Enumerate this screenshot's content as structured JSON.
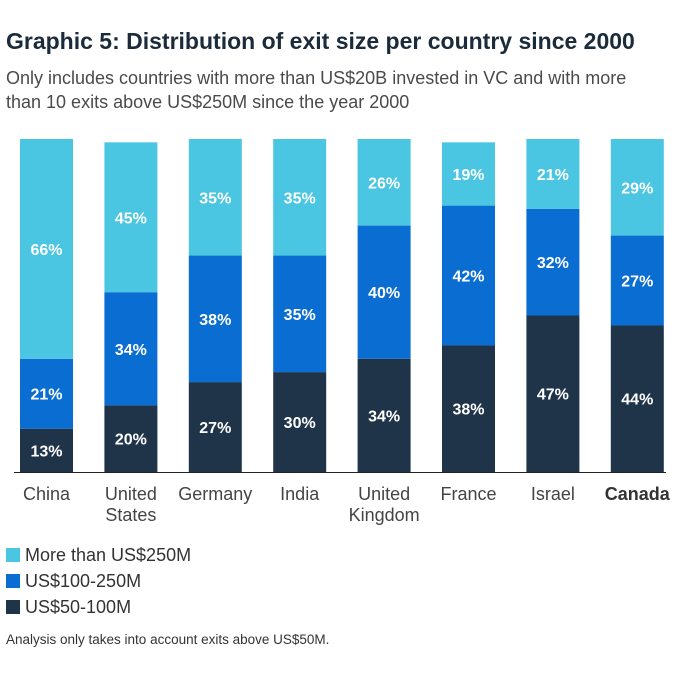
{
  "title": "Graphic 5: Distribution of exit size per country since 2000",
  "subtitle": "Only includes countries with more than US$20B invested in VC and with more than 10 exits above US$250M since the year 2000",
  "footnote": "Analysis only takes into account exits above US$50M.",
  "chart_data": {
    "type": "bar",
    "stacked": true,
    "normalized": true,
    "title": "Graphic 5: Distribution of exit size per country since 2000",
    "xlabel": "",
    "ylabel": "",
    "ylim": [
      0,
      100
    ],
    "grid": false,
    "legend_position": "bottom-left",
    "categories": [
      {
        "lines": [
          "China"
        ],
        "bold": false
      },
      {
        "lines": [
          "United",
          "States"
        ],
        "bold": false
      },
      {
        "lines": [
          "Germany"
        ],
        "bold": false
      },
      {
        "lines": [
          "India"
        ],
        "bold": false
      },
      {
        "lines": [
          "United",
          "Kingdom"
        ],
        "bold": false
      },
      {
        "lines": [
          "France"
        ],
        "bold": false
      },
      {
        "lines": [
          "Israel"
        ],
        "bold": false
      },
      {
        "lines": [
          "Canada"
        ],
        "bold": true
      }
    ],
    "series": [
      {
        "name": "US$50-100M",
        "color": "#1f3449",
        "values": [
          13,
          20,
          27,
          30,
          34,
          38,
          47,
          44
        ]
      },
      {
        "name": "US$100-250M",
        "color": "#0a6dd1",
        "values": [
          21,
          34,
          38,
          35,
          40,
          42,
          32,
          27
        ]
      },
      {
        "name": "More than US$250M",
        "color": "#4ac6e3",
        "values": [
          66,
          45,
          35,
          35,
          26,
          19,
          21,
          29
        ]
      }
    ],
    "value_suffix": "%"
  },
  "legend": [
    {
      "label": "More than US$250M",
      "color": "#4ac6e3"
    },
    {
      "label": "US$100-250M",
      "color": "#0a6dd1"
    },
    {
      "label": "US$50-100M",
      "color": "#1f3449"
    }
  ]
}
